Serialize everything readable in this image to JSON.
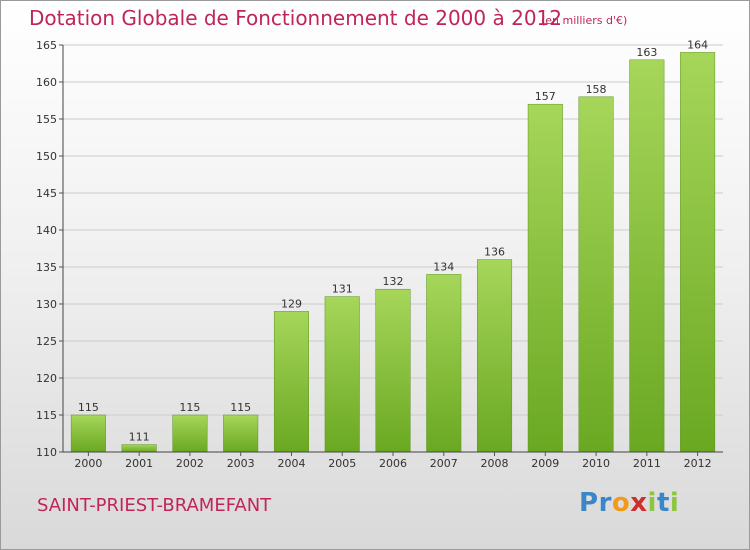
{
  "chart_data": {
    "type": "bar",
    "title": "Dotation Globale de Fonctionnement de 2000 à 2012",
    "subtitle": "(en milliers d'€)",
    "categories": [
      "2000",
      "2001",
      "2002",
      "2003",
      "2004",
      "2005",
      "2006",
      "2007",
      "2008",
      "2009",
      "2010",
      "2011",
      "2012"
    ],
    "values": [
      115,
      111,
      115,
      115,
      129,
      131,
      132,
      134,
      136,
      157,
      158,
      163,
      164
    ],
    "ylim": [
      110,
      165
    ],
    "yticks": [
      110,
      115,
      120,
      125,
      130,
      135,
      140,
      145,
      150,
      155,
      160,
      165
    ],
    "grid": true,
    "colors": {
      "bar_light": "#a6d65a",
      "bar_dark": "#6aa822",
      "title": "#c0245a"
    }
  },
  "footer": {
    "commune": "SAINT-PRIEST-BRAMEFANT",
    "logo_letters": [
      {
        "ch": "P",
        "color": "#3a86c8"
      },
      {
        "ch": "r",
        "color": "#3a86c8"
      },
      {
        "ch": "o",
        "color": "#f29a1a"
      },
      {
        "ch": "x",
        "color": "#d02d2d"
      },
      {
        "ch": "i",
        "color": "#8cc63f"
      },
      {
        "ch": "t",
        "color": "#3a86c8"
      },
      {
        "ch": "i",
        "color": "#8cc63f"
      }
    ]
  }
}
